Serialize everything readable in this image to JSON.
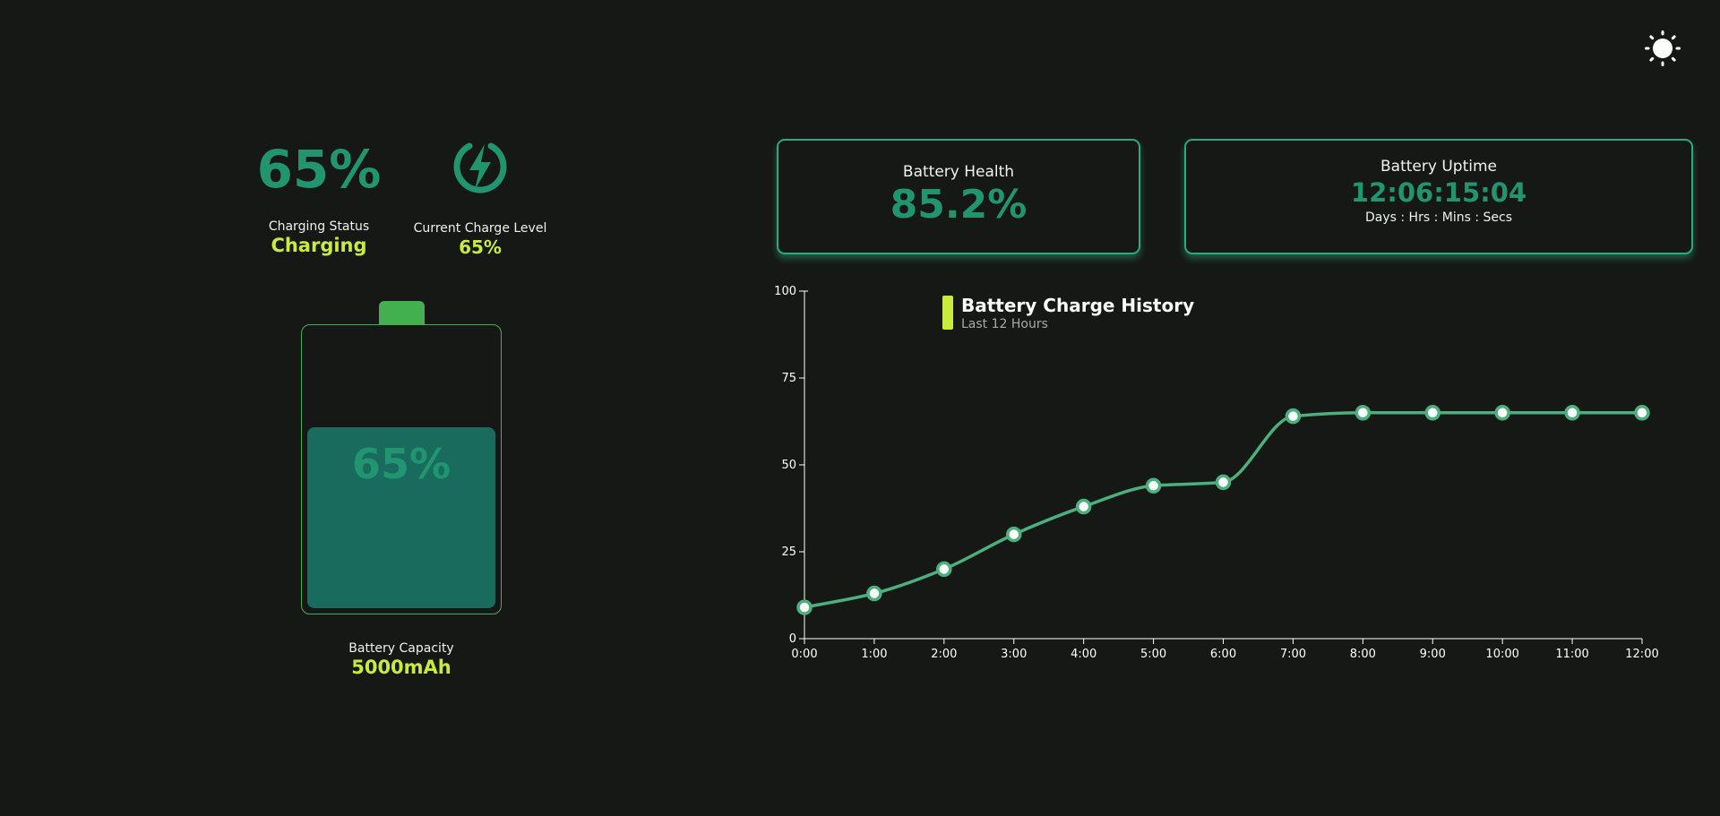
{
  "left_panel": {
    "percent_big": "65%",
    "charging_status_label": "Charging Status",
    "charging_status_value": "Charging",
    "charge_level_label": "Current Charge Level",
    "charge_level_value": "65%",
    "charge_level_fraction": 0.65,
    "battery_fill_text": "65%",
    "capacity_label": "Battery Capacity",
    "capacity_value": "5000mAh",
    "icons": {
      "charging": "lightning-bolt-icon",
      "theme": "sun-icon"
    }
  },
  "cards": {
    "health": {
      "title": "Battery Health",
      "value": "85.2%"
    },
    "uptime": {
      "title": "Battery Uptime",
      "value": "12:06:15:04",
      "subtitle": "Days : Hrs : Mins : Secs"
    }
  },
  "colors": {
    "background": "#161816",
    "accent_green": "#20956f",
    "line_green": "#4bb07d",
    "highlight_yellow": "#c9ec3c",
    "battery_green": "#43b04f",
    "battery_fill": "#196b5e"
  },
  "chart_data": {
    "type": "line",
    "title": "Battery Charge History",
    "subtitle": "Last 12 Hours",
    "xlabel": "",
    "ylabel": "",
    "categories": [
      "0:00",
      "1:00",
      "2:00",
      "3:00",
      "4:00",
      "5:00",
      "6:00",
      "7:00",
      "8:00",
      "9:00",
      "10:00",
      "11:00",
      "12:00"
    ],
    "values": [
      9,
      13,
      20,
      30,
      38,
      44,
      45,
      64,
      65,
      65,
      65,
      65,
      65
    ],
    "ylim": [
      0,
      100
    ],
    "yticks": [
      0,
      25,
      50,
      75,
      100
    ],
    "legend": "top-left",
    "grid": false
  }
}
